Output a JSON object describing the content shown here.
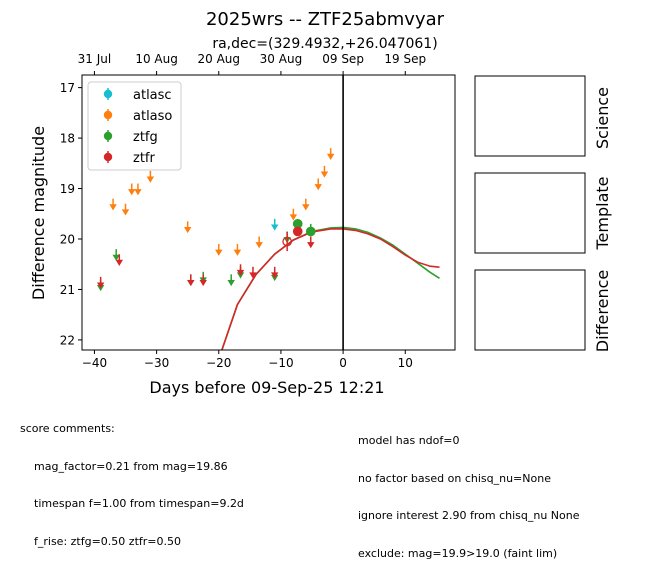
{
  "chart_data": {
    "type": "scatter",
    "title": "2025wrs -- ZTF25abmvyar",
    "subtitle": "ra,dec=(329.4932,+26.047061)",
    "xlabel": "Days before 09-Sep-25 12:21",
    "ylabel": "Difference magnitude",
    "xlim": [
      -42,
      18
    ],
    "ylim": [
      22.2,
      16.75
    ],
    "y_inverted": true,
    "x_ticks": [
      -40,
      -30,
      -20,
      -10,
      0,
      10
    ],
    "y_ticks": [
      17,
      18,
      19,
      20,
      21,
      22
    ],
    "top_axis_ticks": [
      {
        "label": "31 Jul",
        "x": -40
      },
      {
        "label": "10 Aug",
        "x": -30
      },
      {
        "label": "20 Aug",
        "x": -20
      },
      {
        "label": "30 Aug",
        "x": -10
      },
      {
        "label": "09 Sep",
        "x": 0
      },
      {
        "label": "19 Sep",
        "x": 10
      }
    ],
    "vline_x": 0,
    "legend_position": "upper-left",
    "series": [
      {
        "name": "atlasc",
        "color": "#17becf",
        "detections": [],
        "upper_limits": [
          {
            "x": -11,
            "y": 19.7
          }
        ]
      },
      {
        "name": "atlaso",
        "color": "#ff7f0e",
        "detections": [],
        "upper_limits": [
          {
            "x": -37,
            "y": 19.3
          },
          {
            "x": -35,
            "y": 19.4
          },
          {
            "x": -34,
            "y": 19.0
          },
          {
            "x": -33,
            "y": 19.0
          },
          {
            "x": -31,
            "y": 18.75
          },
          {
            "x": -25,
            "y": 19.75
          },
          {
            "x": -20,
            "y": 20.2
          },
          {
            "x": -17,
            "y": 20.2
          },
          {
            "x": -13.5,
            "y": 20.05
          },
          {
            "x": -8,
            "y": 19.5
          },
          {
            "x": -6,
            "y": 19.3
          },
          {
            "x": -4,
            "y": 18.9
          },
          {
            "x": -3,
            "y": 18.65
          },
          {
            "x": -2,
            "y": 18.3
          }
        ]
      },
      {
        "name": "ztfg",
        "color": "#2ca02c",
        "detections": [
          {
            "x": -7.3,
            "y": 19.7,
            "err": 0.05
          },
          {
            "x": -5.2,
            "y": 19.85,
            "err": 0.05
          }
        ],
        "upper_limits": [
          {
            "x": -39,
            "y": 20.9
          },
          {
            "x": -36.5,
            "y": 20.3
          },
          {
            "x": -24.5,
            "y": 20.8
          },
          {
            "x": -22.5,
            "y": 20.75
          },
          {
            "x": -18,
            "y": 20.8
          },
          {
            "x": -16.5,
            "y": 20.65
          },
          {
            "x": -11,
            "y": 20.7
          },
          {
            "x": -9,
            "y": 19.95
          },
          {
            "x": -5.2,
            "y": 19.8
          }
        ]
      },
      {
        "name": "ztfr",
        "color": "#d62728",
        "detections": [
          {
            "x": -7.3,
            "y": 19.85,
            "err": 0.05
          }
        ],
        "open_detections": [
          {
            "x": -9,
            "y": 20.05,
            "err": 0.15
          }
        ],
        "upper_limits": [
          {
            "x": -39,
            "y": 20.85
          },
          {
            "x": -36,
            "y": 20.4
          },
          {
            "x": -24.5,
            "y": 20.8
          },
          {
            "x": -22.5,
            "y": 20.8
          },
          {
            "x": -16.5,
            "y": 20.6
          },
          {
            "x": -14.5,
            "y": 20.65
          },
          {
            "x": -11,
            "y": 20.65
          },
          {
            "x": -5.2,
            "y": 20.05
          }
        ]
      }
    ],
    "model_curves": [
      {
        "band": "ztfg",
        "color": "#2ca02c",
        "points": [
          [
            -19.5,
            22.2
          ],
          [
            -17,
            21.3
          ],
          [
            -14,
            20.7
          ],
          [
            -11,
            20.3
          ],
          [
            -8,
            20.02
          ],
          [
            -5,
            19.85
          ],
          [
            -2,
            19.78
          ],
          [
            0,
            19.77
          ],
          [
            2,
            19.8
          ],
          [
            4,
            19.87
          ],
          [
            6,
            19.98
          ],
          [
            8,
            20.12
          ],
          [
            10,
            20.3
          ],
          [
            12,
            20.48
          ],
          [
            14,
            20.66
          ],
          [
            15.5,
            20.78
          ]
        ]
      },
      {
        "band": "ztfr",
        "color": "#d62728",
        "points": [
          [
            -19.5,
            22.2
          ],
          [
            -17,
            21.3
          ],
          [
            -14,
            20.7
          ],
          [
            -11,
            20.3
          ],
          [
            -8,
            20.02
          ],
          [
            -5,
            19.86
          ],
          [
            -2,
            19.8
          ],
          [
            0,
            19.8
          ],
          [
            2,
            19.83
          ],
          [
            4,
            19.9
          ],
          [
            6,
            20.0
          ],
          [
            8,
            20.15
          ],
          [
            10,
            20.32
          ],
          [
            12,
            20.46
          ],
          [
            14,
            20.54
          ],
          [
            15.5,
            20.56
          ]
        ]
      }
    ]
  },
  "cutout_labels": [
    "Science",
    "Template",
    "Difference"
  ],
  "comments_left": {
    "header": "score comments:",
    "lines": [
      "mag_factor=0.21 from mag=19.86",
      "timespan f=1.00 from timespan=9.2d",
      "f_rise: ztfg=0.50 ztfr=0.50"
    ]
  },
  "comments_right": {
    "lines": [
      "model has ndof=0",
      "no factor based on chisq_nu=None",
      "ignore interest 2.90 from chisq_nu None",
      "exclude: mag=19.9>19.0 (faint lim)"
    ]
  }
}
